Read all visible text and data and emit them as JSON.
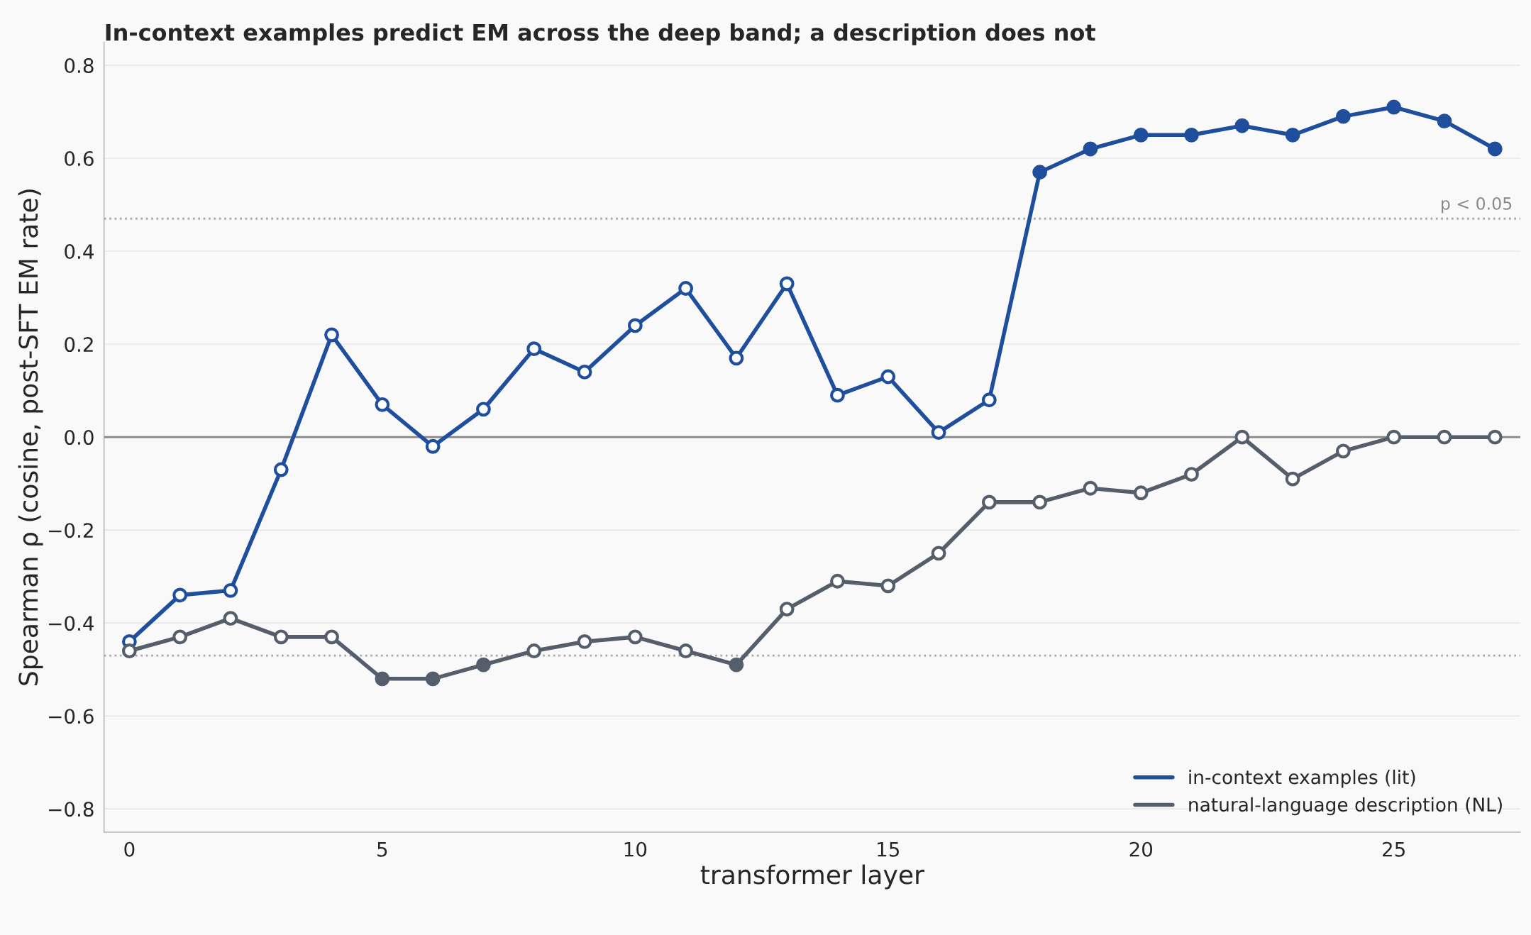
{
  "chart_data": {
    "type": "line",
    "title": "In-context examples predict EM across the deep band; a description does not",
    "xlabel": "transformer layer",
    "ylabel": "Spearman ρ (cosine, post-SFT EM rate)",
    "x": [
      0,
      1,
      2,
      3,
      4,
      5,
      6,
      7,
      8,
      9,
      10,
      11,
      12,
      13,
      14,
      15,
      16,
      17,
      18,
      19,
      20,
      21,
      22,
      23,
      24,
      25,
      26,
      27
    ],
    "series": [
      {
        "name": "in-context examples (lit)",
        "color": "#1f4e9c",
        "values": [
          -0.44,
          -0.34,
          -0.33,
          -0.07,
          0.22,
          0.07,
          -0.02,
          0.06,
          0.19,
          0.14,
          0.24,
          0.32,
          0.17,
          0.33,
          0.09,
          0.13,
          0.01,
          0.08,
          0.57,
          0.62,
          0.65,
          0.65,
          0.67,
          0.65,
          0.69,
          0.71,
          0.68,
          0.62
        ]
      },
      {
        "name": "natural-language description (NL)",
        "color": "#555f6b",
        "values": [
          -0.46,
          -0.43,
          -0.39,
          -0.43,
          -0.43,
          -0.52,
          -0.52,
          -0.49,
          -0.46,
          -0.44,
          -0.43,
          -0.46,
          -0.49,
          -0.37,
          -0.31,
          -0.32,
          -0.25,
          -0.14,
          -0.14,
          -0.11,
          -0.12,
          -0.08,
          0.0,
          -0.09,
          -0.03,
          0.0,
          0.0,
          0.0
        ]
      }
    ],
    "xlim": [
      -0.5,
      27.5
    ],
    "xticks": [
      0,
      5,
      10,
      15,
      20,
      25
    ],
    "ylim": [
      -0.85,
      0.85
    ],
    "yticks": [
      {
        "value": -0.8,
        "label": "−0.8"
      },
      {
        "value": -0.6,
        "label": "−0.6"
      },
      {
        "value": -0.4,
        "label": "−0.4"
      },
      {
        "value": -0.2,
        "label": "−0.2"
      },
      {
        "value": 0.0,
        "label": "0.0"
      },
      {
        "value": 0.2,
        "label": "0.2"
      },
      {
        "value": 0.4,
        "label": "0.4"
      },
      {
        "value": 0.6,
        "label": "0.6"
      },
      {
        "value": 0.8,
        "label": "0.8"
      }
    ],
    "ref_lines": [
      {
        "axis": "y",
        "value": 0.0,
        "color": "#888888",
        "line_style": "solid"
      },
      {
        "axis": "y",
        "value": 0.47,
        "label": "p < 0.05",
        "color": "#aaaaaa",
        "line_style": "dotted"
      },
      {
        "axis": "y",
        "value": -0.47,
        "color": "#aaaaaa",
        "line_style": "dotted"
      }
    ],
    "grid": "y",
    "legend": "bottom right",
    "marker": "circle",
    "line_style": "solid"
  }
}
